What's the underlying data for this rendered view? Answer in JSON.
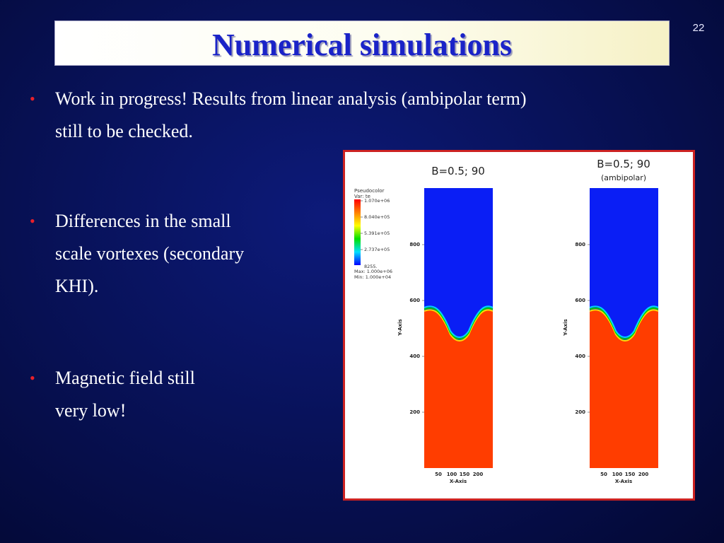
{
  "slide": {
    "title": "Numerical simulations",
    "number": "22"
  },
  "bullets": [
    {
      "marker": "•",
      "lines": [
        "Work in progress! Results from linear analysis (ambipolar term)",
        "still to be checked."
      ]
    },
    {
      "marker": "•",
      "lines": [
        "Differences in the small",
        "scale vortexes (secondary",
        "KHI)."
      ]
    },
    {
      "marker": "•",
      "lines": [
        "Magnetic field still",
        "very low!"
      ]
    }
  ],
  "figure": {
    "legend": {
      "title": "Pseudocolor",
      "var": "Var: te",
      "ticks": [
        "1.070e+06",
        "8.040e+05",
        "5.391e+05",
        "2.737e+05",
        "8255."
      ],
      "max": "Max:  1.000e+06",
      "min": "Min:  1.000e+04",
      "colormap": [
        "#ff0000",
        "#ff8000",
        "#ffff00",
        "#00e000",
        "#00e0ff",
        "#0000ff"
      ]
    },
    "panels": [
      {
        "title": "B=0.5; 90",
        "subtitle": ""
      },
      {
        "title": "B=0.5; 90",
        "subtitle": "(ambipolar)"
      }
    ],
    "y_ticks": [
      "800",
      "600",
      "400",
      "200"
    ],
    "x_ticks": [
      "50",
      "100",
      "150",
      "200"
    ],
    "x_axis_label": "X-Axis",
    "y_axis_label": "Y-Axis",
    "colors": {
      "upper": "#0a1ef5",
      "lower": "#ff3d00"
    }
  }
}
